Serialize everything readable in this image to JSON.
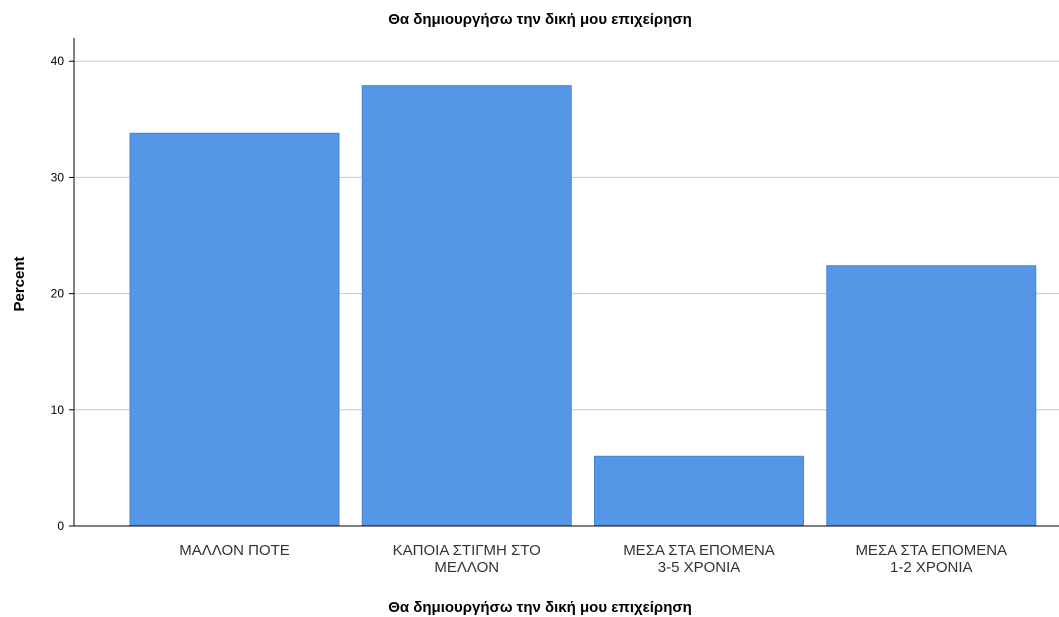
{
  "chart_data": {
    "type": "bar",
    "title": "Θα δημιουργήσω την δική μου επιχείρηση",
    "xlabel": "Θα δημιουργήσω την δική μου επιχείρηση",
    "ylabel": "Percent",
    "categories": [
      [
        "ΜΑΛΛΟΝ ΠΟΤΕ"
      ],
      [
        "ΚΑΠΟΙΑ ΣΤΙΓΜΗ ΣΤΟ",
        "ΜΕΛΛΟΝ"
      ],
      [
        "ΜΕΣΑ ΣΤΑ ΕΠΟΜΕΝΑ",
        "3-5 ΧΡΟΝΙΑ"
      ],
      [
        "ΜΕΣΑ ΣΤΑ ΕΠΟΜΕΝΑ",
        "1-2 ΧΡΟΝΙΑ"
      ]
    ],
    "values": [
      33.8,
      37.9,
      6.0,
      22.4
    ],
    "ylim": [
      0,
      42
    ],
    "yticks": [
      0,
      10,
      20,
      30,
      40
    ],
    "grid": true,
    "bar_color": "#5596e6",
    "bar_edge_color": "#4a86d4",
    "grid_color": "#c8c8c8",
    "axis_color": "#000000"
  }
}
